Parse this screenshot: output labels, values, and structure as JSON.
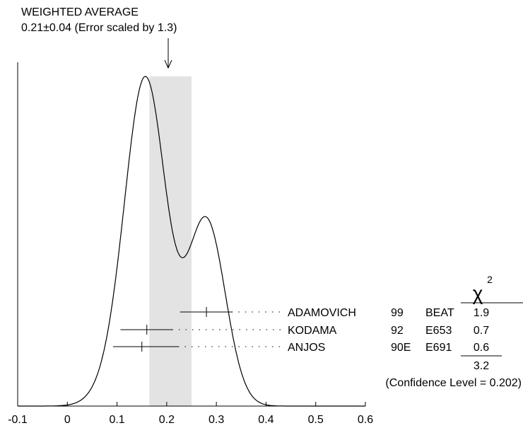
{
  "chart_data": {
    "type": "ideogram",
    "title_line1": "WEIGHTED AVERAGE",
    "title_line2": "0.21±0.04 (Error scaled by 1.3)",
    "weighted_average": 0.21,
    "average_error": 0.04,
    "average_band": [
      0.165,
      0.25
    ],
    "xlim": [
      -0.1,
      0.6
    ],
    "x_ticks": [
      "-0.1",
      "0",
      "0.1",
      "0.2",
      "0.3",
      "0.4",
      "0.5",
      "0.6"
    ],
    "x_tick_values": [
      -0.1,
      0,
      0.1,
      0.2,
      0.3,
      0.4,
      0.5,
      0.6
    ],
    "chi2_header": "χ",
    "chi2_superscript": "2",
    "measurements": [
      {
        "value": 0.28,
        "low": 0.227,
        "high": 0.333,
        "author": "ADAMOVICH",
        "year": "99",
        "experiment": "BEAT",
        "chi2": "1.9"
      },
      {
        "value": 0.16,
        "low": 0.107,
        "high": 0.213,
        "author": "KODAMA",
        "year": "92",
        "experiment": "E653",
        "chi2": "0.7"
      },
      {
        "value": 0.15,
        "low": 0.092,
        "high": 0.225,
        "author": "ANJOS",
        "year": "90E",
        "experiment": "E691",
        "chi2": "0.6"
      }
    ],
    "chi2_total": "3.2",
    "confidence_level": "(Confidence Level = 0.202)"
  }
}
